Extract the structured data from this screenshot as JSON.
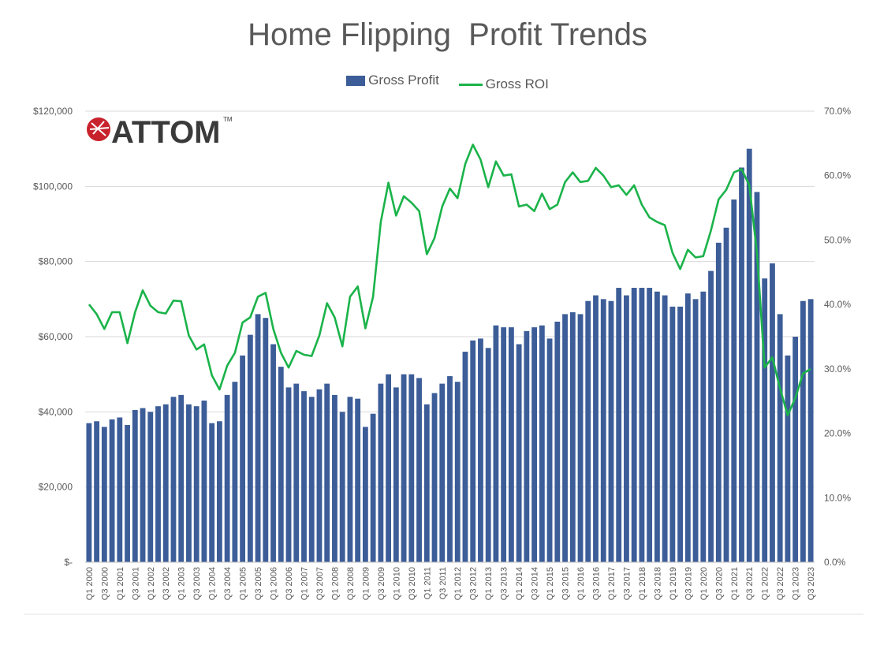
{
  "chart_data": {
    "type": "bar",
    "title": "Home Flipping  Profit Trends",
    "colors": {
      "bar": "#3C5D98",
      "line": "#1BB34A",
      "grid": "#D9D9D9",
      "text": "#595959"
    },
    "legend": {
      "placement": "top-center",
      "entries": [
        "Gross Profit",
        "Gross ROI"
      ]
    },
    "y_left": {
      "min": 0,
      "max": 120000,
      "step": 20000,
      "tick_labels": [
        "$-",
        "$20,000",
        "$40,000",
        "$60,000",
        "$80,000",
        "$100,000",
        "$120,000"
      ]
    },
    "y_right": {
      "min": 0,
      "max": 70,
      "step": 10,
      "tick_labels": [
        "0.0%",
        "10.0%",
        "20.0%",
        "30.0%",
        "40.0%",
        "50.0%",
        "60.0%",
        "70.0%"
      ]
    },
    "grid": true,
    "x_tick_labels": [
      "Q1 2000",
      "Q3 2000",
      "Q1 2001",
      "Q3 2001",
      "Q1 2002",
      "Q3 2002",
      "Q1 2003",
      "Q3 2003",
      "Q1 2004",
      "Q3 2004",
      "Q1 2005",
      "Q3 2005",
      "Q1 2006",
      "Q3 2006",
      "Q1 2007",
      "Q3 2007",
      "Q1 2008",
      "Q3 2008",
      "Q1 2009",
      "Q3 2009",
      "Q1 2010",
      "Q3 2010",
      "Q1 2011",
      "Q3 2011",
      "Q1 2012",
      "Q3 2012",
      "Q1 2013",
      "Q3 2013",
      "Q1 2014",
      "Q3 2014",
      "Q1 2015",
      "Q3 2015",
      "Q1 2016",
      "Q3 2016",
      "Q1 2017",
      "Q3 2017",
      "Q1 2018",
      "Q3 2018",
      "Q1 2019",
      "Q3 2019",
      "Q1 2020",
      "Q3 2020",
      "Q1 2021",
      "Q3 2021",
      "Q1 2022",
      "Q3 2022",
      "Q1 2023",
      "Q3 2023"
    ],
    "series": [
      {
        "name": "Gross Profit",
        "type": "bar",
        "axis": "left",
        "values": [
          37000,
          37500,
          36000,
          38000,
          38500,
          36500,
          40500,
          41000,
          40000,
          41500,
          42000,
          44000,
          44500,
          42000,
          41500,
          43000,
          37000,
          37500,
          44500,
          48000,
          55000,
          60500,
          66000,
          65000,
          58000,
          52000,
          46500,
          47500,
          45500,
          44000,
          46000,
          47500,
          44500,
          40000,
          44000,
          43500,
          36000,
          39500,
          47500,
          50000,
          46500,
          50000,
          50000,
          49000,
          42000,
          45000,
          47500,
          49500,
          48000,
          56000,
          59000,
          59500,
          57000,
          63000,
          62500,
          62500,
          58000,
          61500,
          62500,
          63000,
          59500,
          64000,
          66000,
          66500,
          66000,
          69500,
          71000,
          70000,
          69500,
          73000,
          71000,
          73000,
          73000,
          73000,
          72000,
          71000,
          68000,
          68000,
          71500,
          70000,
          72000,
          77500,
          85000,
          89000,
          96500,
          105000,
          110000,
          98500,
          75500,
          79500,
          66000,
          55000,
          60000,
          69500,
          70000
        ]
      },
      {
        "name": "Gross ROI",
        "type": "line",
        "axis": "right",
        "values": [
          40.0,
          38.5,
          36.2,
          38.8,
          38.8,
          34.0,
          38.8,
          42.2,
          39.8,
          38.8,
          38.6,
          40.6,
          40.5,
          35.2,
          33.0,
          33.8,
          29.0,
          26.8,
          30.5,
          32.5,
          37.2,
          38.0,
          41.2,
          41.8,
          36.2,
          32.5,
          30.2,
          32.8,
          32.2,
          32.0,
          35.2,
          40.2,
          38.0,
          33.5,
          41.2,
          42.8,
          36.3,
          41.2,
          52.8,
          58.9,
          53.8,
          56.8,
          55.8,
          54.5,
          47.8,
          50.3,
          55.2,
          58.0,
          56.5,
          61.8,
          64.8,
          62.5,
          58.2,
          62.2,
          60.0,
          60.2,
          55.2,
          55.5,
          54.5,
          57.2,
          54.8,
          55.5,
          59.0,
          60.5,
          59.0,
          59.2,
          61.2,
          60.0,
          58.2,
          58.5,
          57.0,
          58.5,
          55.5,
          53.5,
          52.8,
          52.3,
          48.0,
          45.5,
          48.5,
          47.3,
          47.5,
          51.5,
          56.3,
          57.8,
          60.5,
          61.0,
          58.5,
          48.0,
          30.2,
          31.8,
          27.0,
          22.8,
          25.5,
          29.3,
          30.0
        ]
      }
    ]
  }
}
